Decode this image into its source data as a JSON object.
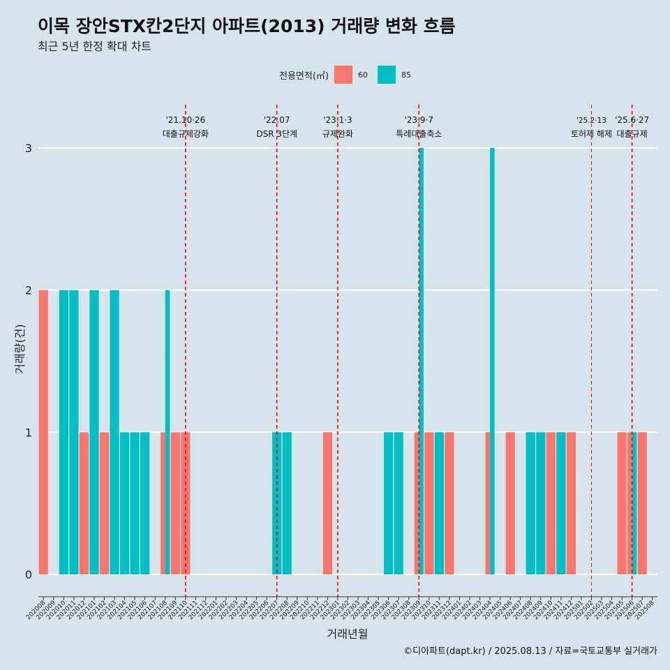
{
  "title": "이목 장안STX칸2단지 아파트(2013) 거래량 변화 흐름",
  "subtitle": "최근 5년 한정 확대 차트",
  "caption": "©디아파트(dapt.kr) / 2025.08.13 / 자료=국토교통부 실거래가",
  "colors": {
    "60": "#f8766d",
    "85": "#00bfc4",
    "event_line": "#ff0000",
    "background": "#d6e4ec"
  },
  "chart_data": {
    "type": "bar",
    "xlabel": "거래년월",
    "ylabel": "거래량(건)",
    "ylim": [
      0,
      3
    ],
    "yticks": [
      0,
      1,
      2,
      3
    ],
    "legend": {
      "title": "전용면적(㎡)",
      "position": "top"
    },
    "categories": [
      "202008",
      "202009",
      "202010",
      "202011",
      "202012",
      "202101",
      "202102",
      "202103",
      "202104",
      "202105",
      "202106",
      "202107",
      "202108",
      "202109",
      "202110",
      "202111",
      "202112",
      "202201",
      "202202",
      "202203",
      "202204",
      "202205",
      "202206",
      "202207",
      "202208",
      "202209",
      "202210",
      "202211",
      "202212",
      "202301",
      "202302",
      "202303",
      "202304",
      "202305",
      "202306",
      "202307",
      "202308",
      "202309",
      "202310",
      "202311",
      "202312",
      "202401",
      "202402",
      "202403",
      "202404",
      "202405",
      "202406",
      "202407",
      "202408",
      "202409",
      "202410",
      "202411",
      "202412",
      "202501",
      "202502",
      "202503",
      "202504",
      "202505",
      "202506",
      "202507",
      "202508"
    ],
    "series": [
      {
        "name": "60",
        "values": [
          2,
          0,
          0,
          0,
          1,
          0,
          1,
          0,
          0,
          0,
          0,
          0,
          1,
          1,
          1,
          0,
          0,
          0,
          0,
          0,
          0,
          0,
          0,
          0,
          0,
          0,
          0,
          0,
          1,
          0,
          0,
          0,
          0,
          0,
          0,
          0,
          0,
          1,
          1,
          0,
          1,
          0,
          0,
          0,
          1,
          0,
          1,
          0,
          0,
          0,
          1,
          0,
          1,
          0,
          0,
          0,
          0,
          1,
          1,
          1,
          0
        ]
      },
      {
        "name": "85",
        "values": [
          0,
          0,
          2,
          2,
          0,
          2,
          0,
          2,
          1,
          1,
          1,
          0,
          2,
          0,
          0,
          0,
          0,
          0,
          0,
          0,
          0,
          0,
          0,
          1,
          1,
          0,
          0,
          0,
          0,
          0,
          0,
          0,
          0,
          0,
          1,
          1,
          0,
          3,
          0,
          1,
          0,
          0,
          0,
          0,
          3,
          0,
          0,
          0,
          1,
          1,
          0,
          1,
          0,
          0,
          0,
          0,
          0,
          0,
          1,
          0,
          0
        ]
      }
    ],
    "events": [
      {
        "at": "202110",
        "date": "'21.10·26",
        "label": "대출규제강화"
      },
      {
        "at": "202207",
        "date": "'22.07",
        "label": "DSR 3단계"
      },
      {
        "at": "202301",
        "date": "'23.1·3",
        "label": "규제완화"
      },
      {
        "at": "202309",
        "date": "'23.9·7",
        "label": "특례대출축소"
      },
      {
        "at": "202502",
        "date": "'25.2·13",
        "label": "토허제 해제"
      },
      {
        "at": "202506",
        "date": "'25.6·27",
        "label": "대출규제"
      }
    ]
  }
}
